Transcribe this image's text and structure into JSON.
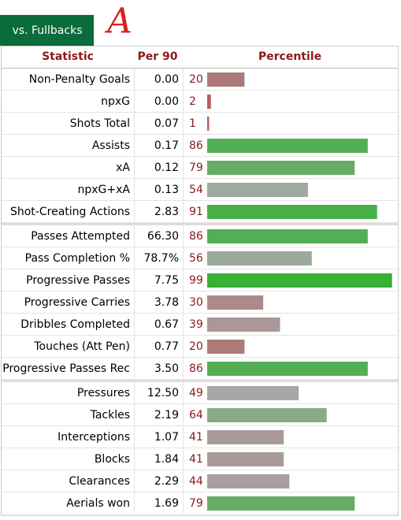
{
  "tab": "vs. Fullbacks",
  "annotation": "A",
  "table": {
    "headers": [
      "Statistic",
      "Per 90",
      "Percentile"
    ],
    "groups": [
      [
        {
          "stat": "Non-Penalty Goals",
          "per90": "0.00",
          "percentile": 20
        },
        {
          "stat": "npxG",
          "per90": "0.00",
          "percentile": 2
        },
        {
          "stat": "Shots Total",
          "per90": "0.07",
          "percentile": 1
        },
        {
          "stat": "Assists",
          "per90": "0.17",
          "percentile": 86
        },
        {
          "stat": "xA",
          "per90": "0.12",
          "percentile": 79
        },
        {
          "stat": "npxG+xA",
          "per90": "0.13",
          "percentile": 54
        },
        {
          "stat": "Shot-Creating Actions",
          "per90": "2.83",
          "percentile": 91
        }
      ],
      [
        {
          "stat": "Passes Attempted",
          "per90": "66.30",
          "percentile": 86
        },
        {
          "stat": "Pass Completion %",
          "per90": "78.7%",
          "percentile": 56
        },
        {
          "stat": "Progressive Passes",
          "per90": "7.75",
          "percentile": 99
        },
        {
          "stat": "Progressive Carries",
          "per90": "3.78",
          "percentile": 30
        },
        {
          "stat": "Dribbles Completed",
          "per90": "0.67",
          "percentile": 39
        },
        {
          "stat": "Touches (Att Pen)",
          "per90": "0.77",
          "percentile": 20
        },
        {
          "stat": "Progressive Passes Rec",
          "per90": "3.50",
          "percentile": 86
        }
      ],
      [
        {
          "stat": "Pressures",
          "per90": "12.50",
          "percentile": 49
        },
        {
          "stat": "Tackles",
          "per90": "2.19",
          "percentile": 64
        },
        {
          "stat": "Interceptions",
          "per90": "1.07",
          "percentile": 41
        },
        {
          "stat": "Blocks",
          "per90": "1.84",
          "percentile": 41
        },
        {
          "stat": "Clearances",
          "per90": "2.29",
          "percentile": 44
        },
        {
          "stat": "Aerials won",
          "per90": "1.69",
          "percentile": 79
        }
      ]
    ]
  }
}
